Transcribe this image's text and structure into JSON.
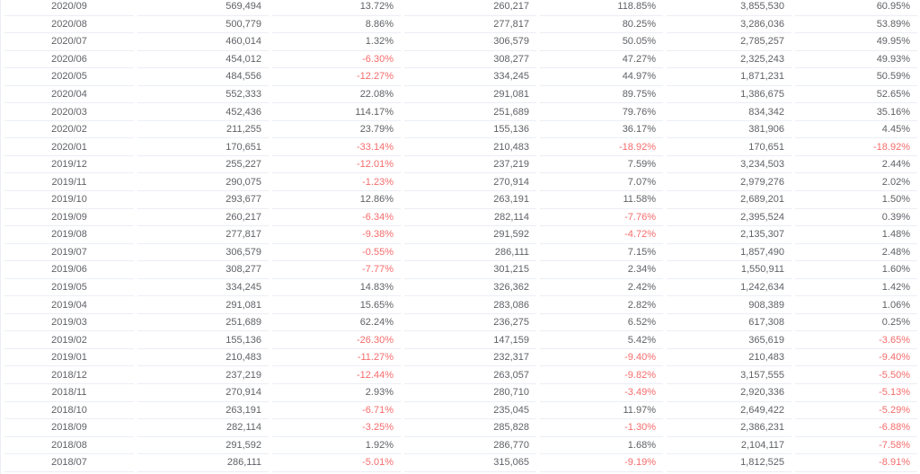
{
  "colors": {
    "text": "#606266",
    "negative": "#f56c6c",
    "row_border": "#ebeef5",
    "background": "#ffffff"
  },
  "table": {
    "columns": [
      {
        "key": "date",
        "align": "center"
      },
      {
        "key": "value-1",
        "align": "right"
      },
      {
        "key": "percent-1",
        "align": "right"
      },
      {
        "key": "value-2",
        "align": "right"
      },
      {
        "key": "percent-2",
        "align": "right"
      },
      {
        "key": "value-3",
        "align": "right"
      },
      {
        "key": "percent-3",
        "align": "right"
      }
    ],
    "rows": [
      [
        "2020/09",
        "569,494",
        "13.72%",
        "260,217",
        "118.85%",
        "3,855,530",
        "60.95%"
      ],
      [
        "2020/08",
        "500,779",
        "8.86%",
        "277,817",
        "80.25%",
        "3,286,036",
        "53.89%"
      ],
      [
        "2020/07",
        "460,014",
        "1.32%",
        "306,579",
        "50.05%",
        "2,785,257",
        "49.95%"
      ],
      [
        "2020/06",
        "454,012",
        "-6.30%",
        "308,277",
        "47.27%",
        "2,325,243",
        "49.93%"
      ],
      [
        "2020/05",
        "484,556",
        "-12.27%",
        "334,245",
        "44.97%",
        "1,871,231",
        "50.59%"
      ],
      [
        "2020/04",
        "552,333",
        "22.08%",
        "291,081",
        "89.75%",
        "1,386,675",
        "52.65%"
      ],
      [
        "2020/03",
        "452,436",
        "114.17%",
        "251,689",
        "79.76%",
        "834,342",
        "35.16%"
      ],
      [
        "2020/02",
        "211,255",
        "23.79%",
        "155,136",
        "36.17%",
        "381,906",
        "4.45%"
      ],
      [
        "2020/01",
        "170,651",
        "-33.14%",
        "210,483",
        "-18.92%",
        "170,651",
        "-18.92%"
      ],
      [
        "2019/12",
        "255,227",
        "-12.01%",
        "237,219",
        "7.59%",
        "3,234,503",
        "2.44%"
      ],
      [
        "2019/11",
        "290,075",
        "-1.23%",
        "270,914",
        "7.07%",
        "2,979,276",
        "2.02%"
      ],
      [
        "2019/10",
        "293,677",
        "12.86%",
        "263,191",
        "11.58%",
        "2,689,201",
        "1.50%"
      ],
      [
        "2019/09",
        "260,217",
        "-6.34%",
        "282,114",
        "-7.76%",
        "2,395,524",
        "0.39%"
      ],
      [
        "2019/08",
        "277,817",
        "-9.38%",
        "291,592",
        "-4.72%",
        "2,135,307",
        "1.48%"
      ],
      [
        "2019/07",
        "306,579",
        "-0.55%",
        "286,111",
        "7.15%",
        "1,857,490",
        "2.48%"
      ],
      [
        "2019/06",
        "308,277",
        "-7.77%",
        "301,215",
        "2.34%",
        "1,550,911",
        "1.60%"
      ],
      [
        "2019/05",
        "334,245",
        "14.83%",
        "326,362",
        "2.42%",
        "1,242,634",
        "1.42%"
      ],
      [
        "2019/04",
        "291,081",
        "15.65%",
        "283,086",
        "2.82%",
        "908,389",
        "1.06%"
      ],
      [
        "2019/03",
        "251,689",
        "62.24%",
        "236,275",
        "6.52%",
        "617,308",
        "0.25%"
      ],
      [
        "2019/02",
        "155,136",
        "-26.30%",
        "147,159",
        "5.42%",
        "365,619",
        "-3.65%"
      ],
      [
        "2019/01",
        "210,483",
        "-11.27%",
        "232,317",
        "-9.40%",
        "210,483",
        "-9.40%"
      ],
      [
        "2018/12",
        "237,219",
        "-12.44%",
        "263,057",
        "-9.82%",
        "3,157,555",
        "-5.50%"
      ],
      [
        "2018/11",
        "270,914",
        "2.93%",
        "280,710",
        "-3.49%",
        "2,920,336",
        "-5.13%"
      ],
      [
        "2018/10",
        "263,191",
        "-6.71%",
        "235,045",
        "11.97%",
        "2,649,422",
        "-5.29%"
      ],
      [
        "2018/09",
        "282,114",
        "-3.25%",
        "285,828",
        "-1.30%",
        "2,386,231",
        "-6.88%"
      ],
      [
        "2018/08",
        "291,592",
        "1.92%",
        "286,770",
        "1.68%",
        "2,104,117",
        "-7.58%"
      ],
      [
        "2018/07",
        "286,111",
        "-5.01%",
        "315,065",
        "-9.19%",
        "1,812,525",
        "-8.91%"
      ]
    ]
  }
}
